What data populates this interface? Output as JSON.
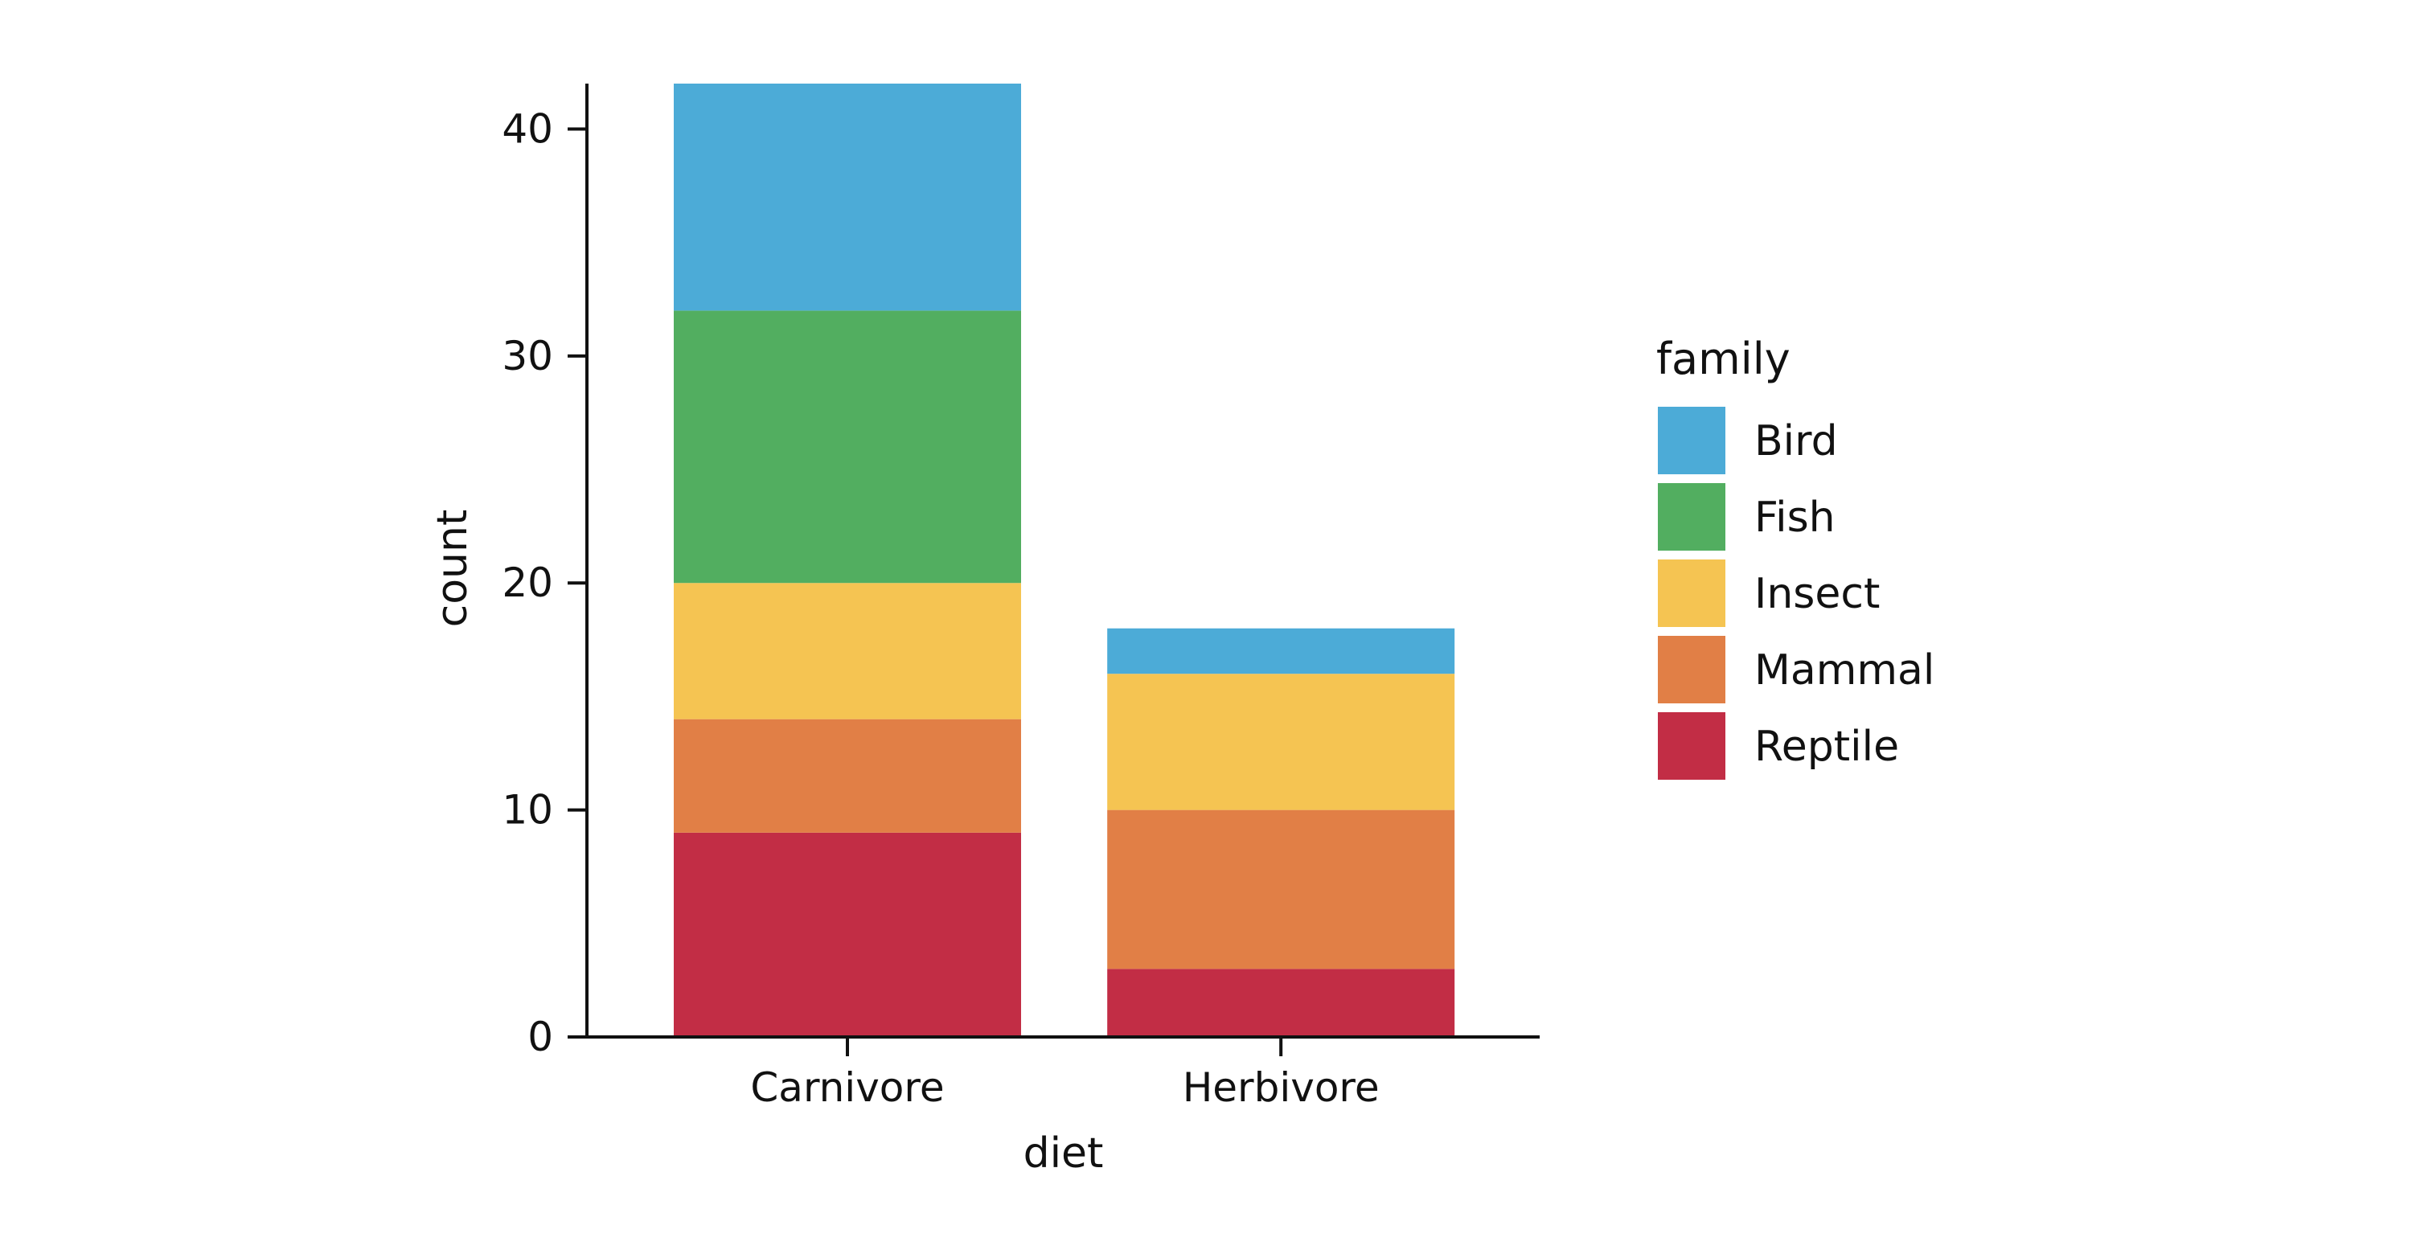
{
  "chart_data": {
    "type": "bar",
    "stacked": true,
    "title": "",
    "xlabel": "diet",
    "ylabel": "count",
    "categories": [
      "Carnivore",
      "Herbivore"
    ],
    "ylim": [
      0,
      42
    ],
    "yticks": [
      0,
      10,
      20,
      30,
      40
    ],
    "grid": false,
    "legend": {
      "title": "family",
      "placement": "right"
    },
    "series": [
      {
        "name": "Reptile",
        "values": [
          9,
          3
        ],
        "color": "#C22D45"
      },
      {
        "name": "Mammal",
        "values": [
          5,
          7
        ],
        "color": "#E17F46"
      },
      {
        "name": "Insect",
        "values": [
          6,
          6
        ],
        "color": "#F5C452"
      },
      {
        "name": "Fish",
        "values": [
          12,
          0
        ],
        "color": "#52AE60"
      },
      {
        "name": "Bird",
        "values": [
          10,
          2
        ],
        "color": "#4CABD7"
      }
    ],
    "legend_order": [
      "Bird",
      "Fish",
      "Insect",
      "Mammal",
      "Reptile"
    ]
  }
}
